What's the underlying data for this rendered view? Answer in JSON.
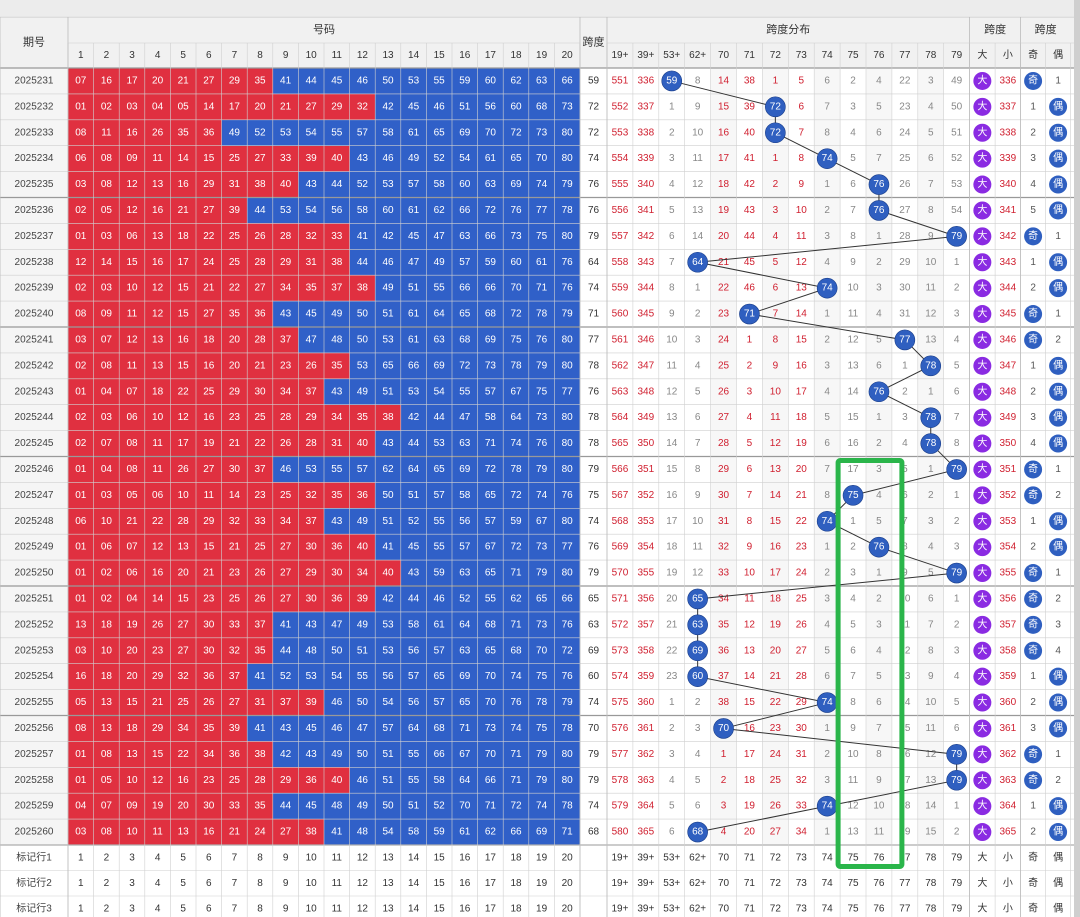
{
  "header": {
    "period_label": "期号",
    "numbers_label": "号码",
    "span_label": "跨度",
    "span_dist_label": "跨度分布",
    "span_bigsmall_label": "跨度",
    "span_oddeven_label": "跨度"
  },
  "number_cols": [
    "1",
    "2",
    "3",
    "4",
    "5",
    "6",
    "7",
    "8",
    "9",
    "10",
    "11",
    "12",
    "13",
    "14",
    "15",
    "16",
    "17",
    "18",
    "19",
    "20"
  ],
  "dist_cols": [
    "19+",
    "39+",
    "53+",
    "62+",
    "70",
    "71",
    "72",
    "73",
    "74",
    "75",
    "76",
    "77",
    "78",
    "79"
  ],
  "bs_cols": [
    "大",
    "小"
  ],
  "oe_cols": [
    "奇",
    "偶"
  ],
  "rows": [
    {
      "p": "2025231",
      "n": [
        7,
        16,
        17,
        20,
        21,
        27,
        29,
        35,
        41,
        44,
        45,
        46,
        50,
        53,
        55,
        59,
        60,
        62,
        63,
        66
      ],
      "s": 59,
      "d": [
        "551",
        "336",
        "59",
        "8",
        "14",
        "38",
        "1",
        "5",
        "6",
        "2",
        "4",
        "22",
        "3",
        "49"
      ],
      "bs": [
        "大",
        "336"
      ],
      "oe": [
        "奇",
        "1"
      ]
    },
    {
      "p": "2025232",
      "n": [
        1,
        2,
        3,
        4,
        5,
        14,
        17,
        20,
        21,
        27,
        29,
        32,
        42,
        45,
        46,
        51,
        56,
        60,
        68,
        73
      ],
      "s": 72,
      "d": [
        "552",
        "337",
        "1",
        "9",
        "15",
        "39",
        "72",
        "6",
        "7",
        "3",
        "5",
        "23",
        "4",
        "50"
      ],
      "bs": [
        "大",
        "337"
      ],
      "oe": [
        "1",
        "偶"
      ]
    },
    {
      "p": "2025233",
      "n": [
        8,
        11,
        16,
        26,
        35,
        36,
        49,
        52,
        53,
        54,
        55,
        57,
        58,
        61,
        65,
        69,
        70,
        72,
        73,
        80
      ],
      "s": 72,
      "d": [
        "553",
        "338",
        "2",
        "10",
        "16",
        "40",
        "72",
        "7",
        "8",
        "4",
        "6",
        "24",
        "5",
        "51"
      ],
      "bs": [
        "大",
        "338"
      ],
      "oe": [
        "2",
        "偶"
      ]
    },
    {
      "p": "2025234",
      "n": [
        6,
        8,
        9,
        11,
        14,
        15,
        25,
        27,
        33,
        39,
        40,
        43,
        46,
        49,
        52,
        54,
        61,
        65,
        70,
        80
      ],
      "s": 74,
      "d": [
        "554",
        "339",
        "3",
        "11",
        "17",
        "41",
        "1",
        "8",
        "74",
        "5",
        "7",
        "25",
        "6",
        "52"
      ],
      "bs": [
        "大",
        "339"
      ],
      "oe": [
        "3",
        "偶"
      ]
    },
    {
      "p": "2025235",
      "n": [
        3,
        8,
        12,
        13,
        16,
        29,
        31,
        38,
        40,
        43,
        44,
        52,
        53,
        57,
        58,
        60,
        63,
        69,
        74,
        79
      ],
      "s": 76,
      "d": [
        "555",
        "340",
        "4",
        "12",
        "18",
        "42",
        "2",
        "9",
        "1",
        "6",
        "76",
        "26",
        "7",
        "53"
      ],
      "bs": [
        "大",
        "340"
      ],
      "oe": [
        "4",
        "偶"
      ]
    },
    {
      "p": "2025236",
      "n": [
        2,
        5,
        12,
        16,
        21,
        27,
        39,
        44,
        53,
        54,
        56,
        58,
        60,
        61,
        62,
        66,
        72,
        76,
        77,
        78
      ],
      "s": 76,
      "d": [
        "556",
        "341",
        "5",
        "13",
        "19",
        "43",
        "3",
        "10",
        "2",
        "7",
        "76",
        "27",
        "8",
        "54"
      ],
      "bs": [
        "大",
        "341"
      ],
      "oe": [
        "5",
        "偶"
      ]
    },
    {
      "p": "2025237",
      "n": [
        1,
        3,
        6,
        13,
        18,
        22,
        25,
        26,
        28,
        32,
        33,
        41,
        42,
        45,
        47,
        63,
        66,
        73,
        75,
        80
      ],
      "s": 79,
      "d": [
        "557",
        "342",
        "6",
        "14",
        "20",
        "44",
        "4",
        "11",
        "3",
        "8",
        "1",
        "28",
        "9",
        "79"
      ],
      "bs": [
        "大",
        "342"
      ],
      "oe": [
        "奇",
        "1"
      ]
    },
    {
      "p": "2025238",
      "n": [
        12,
        14,
        15,
        16,
        17,
        24,
        25,
        28,
        29,
        31,
        38,
        44,
        46,
        47,
        49,
        57,
        59,
        60,
        61,
        76
      ],
      "s": 64,
      "d": [
        "558",
        "343",
        "7",
        "64",
        "21",
        "45",
        "5",
        "12",
        "4",
        "9",
        "2",
        "29",
        "10",
        "1"
      ],
      "bs": [
        "大",
        "343"
      ],
      "oe": [
        "1",
        "偶"
      ]
    },
    {
      "p": "2025239",
      "n": [
        2,
        3,
        10,
        12,
        15,
        21,
        22,
        27,
        34,
        35,
        37,
        38,
        49,
        51,
        55,
        66,
        66,
        70,
        71,
        76
      ],
      "s": 74,
      "d": [
        "559",
        "344",
        "8",
        "1",
        "22",
        "46",
        "6",
        "13",
        "74",
        "10",
        "3",
        "30",
        "11",
        "2"
      ],
      "bs": [
        "大",
        "344"
      ],
      "oe": [
        "2",
        "偶"
      ]
    },
    {
      "p": "2025240",
      "n": [
        8,
        9,
        11,
        12,
        15,
        27,
        35,
        36,
        43,
        45,
        49,
        50,
        51,
        61,
        64,
        65,
        68,
        72,
        78,
        79
      ],
      "s": 71,
      "d": [
        "560",
        "345",
        "9",
        "2",
        "23",
        "71",
        "7",
        "14",
        "1",
        "11",
        "4",
        "31",
        "12",
        "3"
      ],
      "bs": [
        "大",
        "345"
      ],
      "oe": [
        "奇",
        "1"
      ]
    },
    {
      "p": "2025241",
      "n": [
        3,
        7,
        12,
        13,
        16,
        18,
        20,
        28,
        37,
        47,
        48,
        50,
        53,
        61,
        63,
        68,
        69,
        75,
        76,
        80
      ],
      "s": 77,
      "d": [
        "561",
        "346",
        "10",
        "3",
        "24",
        "1",
        "8",
        "15",
        "2",
        "12",
        "5",
        "77",
        "13",
        "4"
      ],
      "bs": [
        "大",
        "346"
      ],
      "oe": [
        "奇",
        "2"
      ]
    },
    {
      "p": "2025242",
      "n": [
        2,
        8,
        11,
        13,
        15,
        16,
        20,
        21,
        23,
        26,
        35,
        53,
        65,
        66,
        69,
        72,
        73,
        78,
        79,
        80
      ],
      "s": 78,
      "d": [
        "562",
        "347",
        "11",
        "4",
        "25",
        "2",
        "9",
        "16",
        "3",
        "13",
        "6",
        "1",
        "78",
        "5"
      ],
      "bs": [
        "大",
        "347"
      ],
      "oe": [
        "1",
        "偶"
      ]
    },
    {
      "p": "2025243",
      "n": [
        1,
        4,
        7,
        18,
        22,
        25,
        29,
        30,
        34,
        37,
        43,
        49,
        51,
        53,
        54,
        55,
        57,
        67,
        75,
        77
      ],
      "s": 76,
      "d": [
        "563",
        "348",
        "12",
        "5",
        "26",
        "3",
        "10",
        "17",
        "4",
        "14",
        "76",
        "2",
        "1",
        "6"
      ],
      "bs": [
        "大",
        "348"
      ],
      "oe": [
        "2",
        "偶"
      ]
    },
    {
      "p": "2025244",
      "n": [
        2,
        3,
        6,
        10,
        12,
        16,
        23,
        25,
        28,
        29,
        34,
        35,
        38,
        42,
        44,
        47,
        58,
        64,
        73,
        80
      ],
      "s": 78,
      "d": [
        "564",
        "349",
        "13",
        "6",
        "27",
        "4",
        "11",
        "18",
        "5",
        "15",
        "1",
        "3",
        "78",
        "7"
      ],
      "bs": [
        "大",
        "349"
      ],
      "oe": [
        "3",
        "偶"
      ]
    },
    {
      "p": "2025245",
      "n": [
        2,
        7,
        8,
        11,
        17,
        19,
        21,
        22,
        26,
        28,
        31,
        40,
        43,
        44,
        53,
        63,
        71,
        74,
        76,
        80
      ],
      "s": 78,
      "d": [
        "565",
        "350",
        "14",
        "7",
        "28",
        "5",
        "12",
        "19",
        "6",
        "16",
        "2",
        "4",
        "78",
        "8"
      ],
      "bs": [
        "大",
        "350"
      ],
      "oe": [
        "4",
        "偶"
      ]
    },
    {
      "p": "2025246",
      "n": [
        1,
        4,
        8,
        11,
        26,
        27,
        30,
        37,
        46,
        53,
        55,
        57,
        62,
        64,
        65,
        69,
        72,
        78,
        79,
        80
      ],
      "s": 79,
      "d": [
        "566",
        "351",
        "15",
        "8",
        "29",
        "6",
        "13",
        "20",
        "7",
        "17",
        "3",
        "5",
        "1",
        "79"
      ],
      "bs": [
        "大",
        "351"
      ],
      "oe": [
        "奇",
        "1"
      ]
    },
    {
      "p": "2025247",
      "n": [
        1,
        3,
        5,
        6,
        10,
        11,
        14,
        23,
        25,
        32,
        35,
        36,
        50,
        51,
        57,
        58,
        65,
        72,
        74,
        76
      ],
      "s": 75,
      "d": [
        "567",
        "352",
        "16",
        "9",
        "30",
        "7",
        "14",
        "21",
        "8",
        "75",
        "4",
        "6",
        "2",
        "1"
      ],
      "bs": [
        "大",
        "352"
      ],
      "oe": [
        "奇",
        "2"
      ]
    },
    {
      "p": "2025248",
      "n": [
        6,
        10,
        21,
        22,
        28,
        29,
        32,
        33,
        34,
        37,
        43,
        49,
        51,
        52,
        55,
        56,
        57,
        59,
        67,
        80
      ],
      "s": 74,
      "d": [
        "568",
        "353",
        "17",
        "10",
        "31",
        "8",
        "15",
        "22",
        "74",
        "1",
        "5",
        "7",
        "3",
        "2"
      ],
      "bs": [
        "大",
        "353"
      ],
      "oe": [
        "1",
        "偶"
      ]
    },
    {
      "p": "2025249",
      "n": [
        1,
        6,
        7,
        12,
        13,
        15,
        21,
        25,
        27,
        30,
        36,
        40,
        41,
        45,
        55,
        57,
        67,
        72,
        73,
        77
      ],
      "s": 76,
      "d": [
        "569",
        "354",
        "18",
        "11",
        "32",
        "9",
        "16",
        "23",
        "1",
        "2",
        "76",
        "8",
        "4",
        "3"
      ],
      "bs": [
        "大",
        "354"
      ],
      "oe": [
        "2",
        "偶"
      ]
    },
    {
      "p": "2025250",
      "n": [
        1,
        2,
        6,
        16,
        20,
        21,
        23,
        26,
        27,
        29,
        30,
        34,
        40,
        43,
        59,
        63,
        65,
        71,
        79,
        80
      ],
      "s": 79,
      "d": [
        "570",
        "355",
        "19",
        "12",
        "33",
        "10",
        "17",
        "24",
        "2",
        "3",
        "1",
        "9",
        "5",
        "79"
      ],
      "bs": [
        "大",
        "355"
      ],
      "oe": [
        "奇",
        "1"
      ]
    },
    {
      "p": "2025251",
      "n": [
        1,
        2,
        4,
        14,
        15,
        23,
        25,
        26,
        27,
        30,
        36,
        39,
        42,
        44,
        46,
        52,
        55,
        62,
        65,
        66
      ],
      "s": 65,
      "d": [
        "571",
        "356",
        "20",
        "65",
        "34",
        "11",
        "18",
        "25",
        "3",
        "4",
        "2",
        "10",
        "6",
        "1"
      ],
      "bs": [
        "大",
        "356"
      ],
      "oe": [
        "奇",
        "2"
      ]
    },
    {
      "p": "2025252",
      "n": [
        13,
        18,
        19,
        26,
        27,
        30,
        33,
        37,
        41,
        43,
        47,
        49,
        53,
        58,
        61,
        64,
        68,
        71,
        73,
        76
      ],
      "s": 63,
      "d": [
        "572",
        "357",
        "21",
        "63",
        "35",
        "12",
        "19",
        "26",
        "4",
        "5",
        "3",
        "11",
        "7",
        "2"
      ],
      "bs": [
        "大",
        "357"
      ],
      "oe": [
        "奇",
        "3"
      ]
    },
    {
      "p": "2025253",
      "n": [
        3,
        10,
        20,
        23,
        27,
        30,
        32,
        35,
        44,
        48,
        50,
        51,
        53,
        56,
        57,
        63,
        65,
        68,
        70,
        72
      ],
      "s": 69,
      "d": [
        "573",
        "358",
        "22",
        "69",
        "36",
        "13",
        "20",
        "27",
        "5",
        "6",
        "4",
        "12",
        "8",
        "3"
      ],
      "bs": [
        "大",
        "358"
      ],
      "oe": [
        "奇",
        "4"
      ]
    },
    {
      "p": "2025254",
      "n": [
        16,
        18,
        20,
        29,
        32,
        36,
        37,
        41,
        52,
        53,
        54,
        55,
        56,
        57,
        65,
        69,
        70,
        74,
        75,
        76
      ],
      "s": 60,
      "d": [
        "574",
        "359",
        "23",
        "60",
        "37",
        "14",
        "21",
        "28",
        "6",
        "7",
        "5",
        "13",
        "9",
        "4"
      ],
      "bs": [
        "大",
        "359"
      ],
      "oe": [
        "1",
        "偶"
      ]
    },
    {
      "p": "2025255",
      "n": [
        5,
        13,
        15,
        21,
        25,
        26,
        27,
        31,
        37,
        39,
        46,
        50,
        54,
        56,
        57,
        65,
        70,
        76,
        78,
        79
      ],
      "s": 74,
      "d": [
        "575",
        "360",
        "1",
        "2",
        "38",
        "15",
        "22",
        "29",
        "74",
        "8",
        "6",
        "14",
        "10",
        "5"
      ],
      "bs": [
        "大",
        "360"
      ],
      "oe": [
        "2",
        "偶"
      ]
    },
    {
      "p": "2025256",
      "n": [
        8,
        13,
        18,
        29,
        34,
        35,
        39,
        41,
        43,
        45,
        46,
        47,
        57,
        64,
        68,
        71,
        73,
        74,
        75,
        78
      ],
      "s": 70,
      "d": [
        "576",
        "361",
        "2",
        "3",
        "70",
        "16",
        "23",
        "30",
        "1",
        "9",
        "7",
        "15",
        "11",
        "6"
      ],
      "bs": [
        "大",
        "361"
      ],
      "oe": [
        "3",
        "偶"
      ]
    },
    {
      "p": "2025257",
      "n": [
        1,
        8,
        13,
        15,
        22,
        34,
        36,
        38,
        42,
        43,
        49,
        50,
        51,
        55,
        66,
        67,
        70,
        71,
        79,
        80
      ],
      "s": 79,
      "d": [
        "577",
        "362",
        "3",
        "4",
        "1",
        "17",
        "24",
        "31",
        "2",
        "10",
        "8",
        "16",
        "12",
        "79"
      ],
      "bs": [
        "大",
        "362"
      ],
      "oe": [
        "奇",
        "1"
      ]
    },
    {
      "p": "2025258",
      "n": [
        1,
        5,
        10,
        12,
        16,
        23,
        25,
        28,
        29,
        36,
        40,
        46,
        51,
        55,
        58,
        64,
        66,
        71,
        79,
        80
      ],
      "s": 79,
      "d": [
        "578",
        "363",
        "4",
        "5",
        "2",
        "18",
        "25",
        "32",
        "3",
        "11",
        "9",
        "17",
        "13",
        "79"
      ],
      "bs": [
        "大",
        "363"
      ],
      "oe": [
        "奇",
        "2"
      ]
    },
    {
      "p": "2025259",
      "n": [
        4,
        7,
        9,
        19,
        20,
        30,
        33,
        35,
        44,
        45,
        48,
        49,
        50,
        51,
        52,
        70,
        71,
        72,
        74,
        78
      ],
      "s": 74,
      "d": [
        "579",
        "364",
        "5",
        "6",
        "3",
        "19",
        "26",
        "33",
        "74",
        "12",
        "10",
        "18",
        "14",
        "1"
      ],
      "bs": [
        "大",
        "364"
      ],
      "oe": [
        "1",
        "偶"
      ]
    },
    {
      "p": "2025260",
      "n": [
        3,
        8,
        10,
        11,
        13,
        16,
        21,
        24,
        27,
        38,
        41,
        48,
        54,
        58,
        59,
        61,
        62,
        66,
        69,
        71
      ],
      "s": 68,
      "d": [
        "580",
        "365",
        "6",
        "68",
        "4",
        "20",
        "27",
        "34",
        "1",
        "13",
        "11",
        "19",
        "15",
        "2"
      ],
      "bs": [
        "大",
        "365"
      ],
      "oe": [
        "2",
        "偶"
      ]
    }
  ],
  "bottom_rows": [
    {
      "label": "标记行1"
    },
    {
      "label": "标记行2"
    },
    {
      "label": "标记行3"
    }
  ],
  "colors": {
    "red": "#e03040",
    "blue": "#3060c8",
    "ball": "#2f5fc0",
    "purple": "#8a2be2",
    "green": "#2ab54a",
    "grid": "#d6d6d6",
    "header": "#f1f1f1"
  }
}
